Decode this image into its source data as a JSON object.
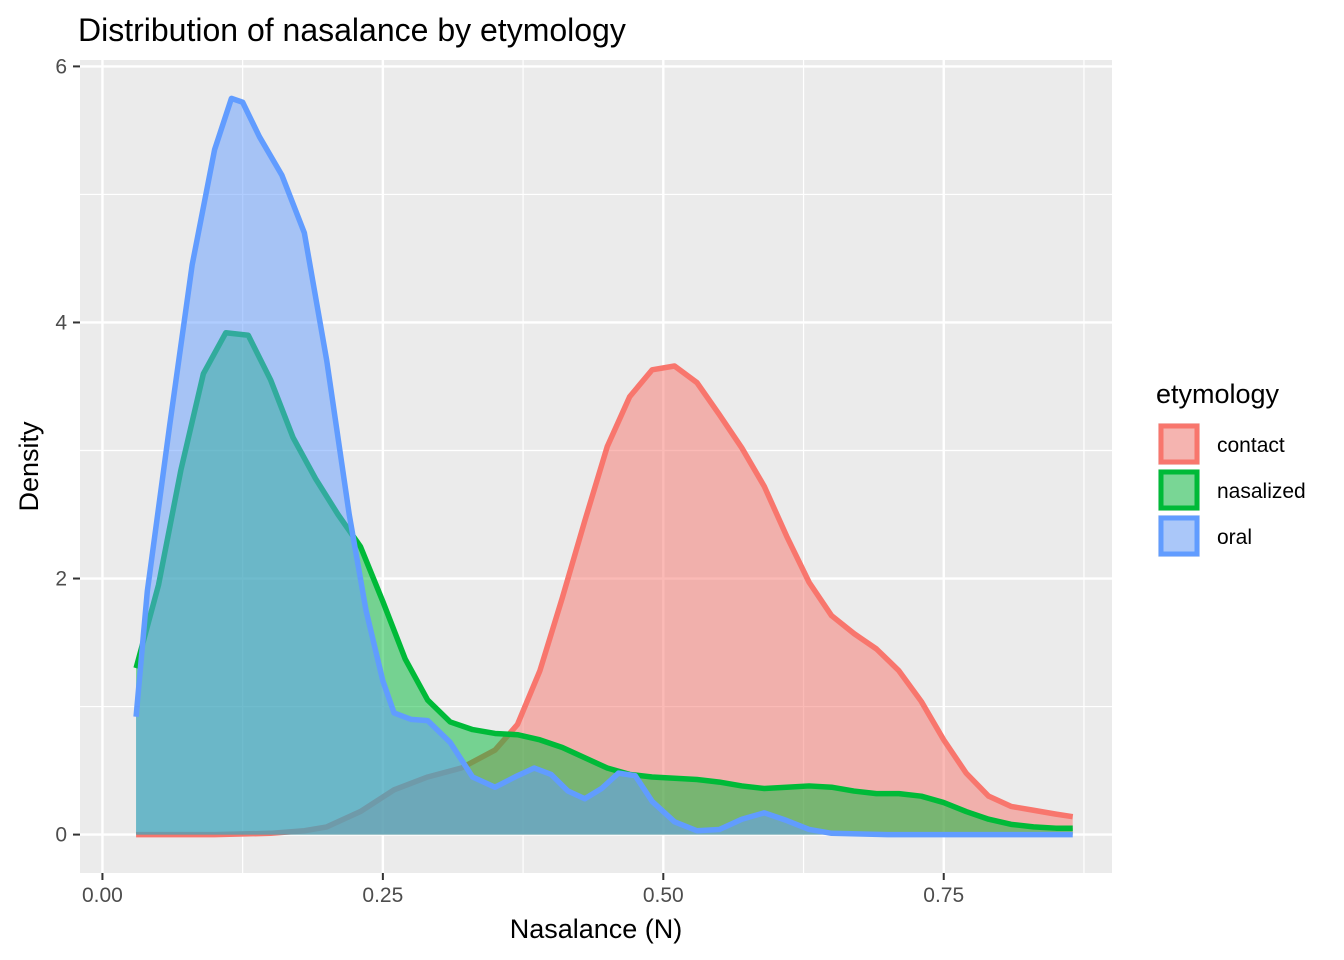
{
  "chart_data": {
    "type": "area",
    "subtype": "density",
    "title": "Distribution of nasalance by etymology",
    "xlabel": "Nasalance (N)",
    "ylabel": "Density",
    "xlim": [
      -0.02,
      0.9
    ],
    "ylim": [
      -0.3,
      6.05
    ],
    "x_ticks": [
      0.0,
      0.25,
      0.5,
      0.75
    ],
    "x_tick_labels": [
      "0.00",
      "0.25",
      "0.50",
      "0.75"
    ],
    "y_ticks": [
      0,
      2,
      4,
      6
    ],
    "y_tick_labels": [
      "0",
      "2",
      "4",
      "6"
    ],
    "grid": true,
    "legend": {
      "title": "etymology",
      "position": "right"
    },
    "series": [
      {
        "name": "contact",
        "color": "#F8766D",
        "points": [
          [
            0.03,
            0.0
          ],
          [
            0.1,
            0.0
          ],
          [
            0.15,
            0.01
          ],
          [
            0.18,
            0.03
          ],
          [
            0.2,
            0.06
          ],
          [
            0.23,
            0.18
          ],
          [
            0.26,
            0.35
          ],
          [
            0.29,
            0.45
          ],
          [
            0.32,
            0.52
          ],
          [
            0.35,
            0.66
          ],
          [
            0.37,
            0.86
          ],
          [
            0.39,
            1.28
          ],
          [
            0.41,
            1.85
          ],
          [
            0.43,
            2.45
          ],
          [
            0.45,
            3.03
          ],
          [
            0.47,
            3.42
          ],
          [
            0.49,
            3.63
          ],
          [
            0.51,
            3.66
          ],
          [
            0.53,
            3.53
          ],
          [
            0.55,
            3.28
          ],
          [
            0.57,
            3.02
          ],
          [
            0.59,
            2.72
          ],
          [
            0.61,
            2.33
          ],
          [
            0.63,
            1.97
          ],
          [
            0.65,
            1.71
          ],
          [
            0.67,
            1.57
          ],
          [
            0.69,
            1.45
          ],
          [
            0.71,
            1.28
          ],
          [
            0.73,
            1.04
          ],
          [
            0.75,
            0.74
          ],
          [
            0.77,
            0.48
          ],
          [
            0.79,
            0.3
          ],
          [
            0.81,
            0.22
          ],
          [
            0.83,
            0.19
          ],
          [
            0.85,
            0.16
          ],
          [
            0.865,
            0.14
          ]
        ]
      },
      {
        "name": "nasalized",
        "color": "#00BA38",
        "points": [
          [
            0.03,
            1.3
          ],
          [
            0.05,
            1.95
          ],
          [
            0.07,
            2.85
          ],
          [
            0.09,
            3.6
          ],
          [
            0.11,
            3.92
          ],
          [
            0.13,
            3.9
          ],
          [
            0.15,
            3.55
          ],
          [
            0.17,
            3.1
          ],
          [
            0.19,
            2.78
          ],
          [
            0.21,
            2.5
          ],
          [
            0.23,
            2.25
          ],
          [
            0.25,
            1.82
          ],
          [
            0.27,
            1.37
          ],
          [
            0.29,
            1.05
          ],
          [
            0.31,
            0.88
          ],
          [
            0.33,
            0.82
          ],
          [
            0.35,
            0.79
          ],
          [
            0.37,
            0.78
          ],
          [
            0.39,
            0.74
          ],
          [
            0.41,
            0.68
          ],
          [
            0.43,
            0.6
          ],
          [
            0.45,
            0.52
          ],
          [
            0.47,
            0.47
          ],
          [
            0.49,
            0.45
          ],
          [
            0.51,
            0.44
          ],
          [
            0.53,
            0.43
          ],
          [
            0.55,
            0.41
          ],
          [
            0.57,
            0.38
          ],
          [
            0.59,
            0.36
          ],
          [
            0.61,
            0.37
          ],
          [
            0.63,
            0.38
          ],
          [
            0.65,
            0.37
          ],
          [
            0.67,
            0.34
          ],
          [
            0.69,
            0.32
          ],
          [
            0.71,
            0.32
          ],
          [
            0.73,
            0.3
          ],
          [
            0.75,
            0.25
          ],
          [
            0.77,
            0.18
          ],
          [
            0.79,
            0.12
          ],
          [
            0.81,
            0.08
          ],
          [
            0.83,
            0.06
          ],
          [
            0.85,
            0.05
          ],
          [
            0.865,
            0.05
          ]
        ]
      },
      {
        "name": "oral",
        "color": "#619CFF",
        "points": [
          [
            0.03,
            0.92
          ],
          [
            0.04,
            1.9
          ],
          [
            0.06,
            3.2
          ],
          [
            0.08,
            4.45
          ],
          [
            0.1,
            5.35
          ],
          [
            0.115,
            5.75
          ],
          [
            0.125,
            5.72
          ],
          [
            0.14,
            5.45
          ],
          [
            0.16,
            5.15
          ],
          [
            0.18,
            4.7
          ],
          [
            0.2,
            3.7
          ],
          [
            0.22,
            2.5
          ],
          [
            0.235,
            1.75
          ],
          [
            0.25,
            1.2
          ],
          [
            0.26,
            0.95
          ],
          [
            0.275,
            0.9
          ],
          [
            0.29,
            0.89
          ],
          [
            0.31,
            0.72
          ],
          [
            0.33,
            0.45
          ],
          [
            0.35,
            0.37
          ],
          [
            0.37,
            0.46
          ],
          [
            0.385,
            0.52
          ],
          [
            0.4,
            0.47
          ],
          [
            0.415,
            0.34
          ],
          [
            0.43,
            0.28
          ],
          [
            0.445,
            0.36
          ],
          [
            0.46,
            0.48
          ],
          [
            0.475,
            0.46
          ],
          [
            0.49,
            0.26
          ],
          [
            0.51,
            0.1
          ],
          [
            0.53,
            0.03
          ],
          [
            0.55,
            0.04
          ],
          [
            0.57,
            0.12
          ],
          [
            0.59,
            0.17
          ],
          [
            0.61,
            0.11
          ],
          [
            0.63,
            0.04
          ],
          [
            0.65,
            0.01
          ],
          [
            0.7,
            0.0
          ],
          [
            0.8,
            0.0
          ],
          [
            0.865,
            0.0
          ]
        ]
      }
    ]
  }
}
